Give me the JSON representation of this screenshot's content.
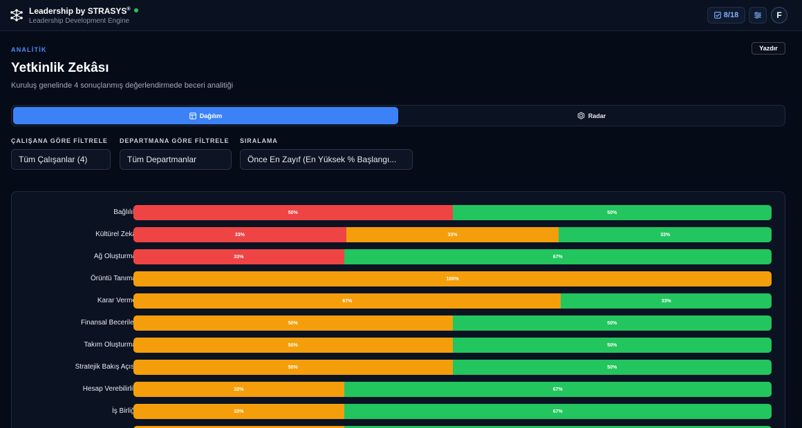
{
  "header": {
    "brand": "Leadership by STRASYS",
    "brand_mark": "®",
    "subtitle": "Leadership Development Engine",
    "progress": "8/18",
    "avatar_initial": "F"
  },
  "page": {
    "eyebrow": "ANALİTİK",
    "title": "Yetkinlik Zekâsı",
    "subtitle": "Kuruluş genelinde 4 sonuçlanmış değerlendirmede beceri analitiği",
    "print_label": "Yazdır"
  },
  "tabs": [
    {
      "label": "Dağılım",
      "active": true
    },
    {
      "label": "Radar",
      "active": false
    }
  ],
  "filters": [
    {
      "label": "ÇALIŞANA GÖRE FİLTRELE",
      "value": "Tüm Çalışanlar (4)"
    },
    {
      "label": "DEPARTMANA GÖRE FİLTRELE",
      "value": "Tüm Departmanlar"
    },
    {
      "label": "SIRALAMA",
      "value": "Önce En Zayıf (En Yüksek % Başlangı..."
    }
  ],
  "colors": {
    "red": "#ef4444",
    "orange": "#f59e0b",
    "green": "#22c55e",
    "accent": "#3b82f6"
  },
  "chart_data": {
    "type": "bar",
    "orientation": "horizontal-stacked-100",
    "series_colors": [
      "red",
      "orange",
      "green"
    ],
    "rows": [
      {
        "label": "Bağlılık",
        "segments": [
          {
            "color": "red",
            "value": 50
          },
          {
            "color": "green",
            "value": 50
          }
        ]
      },
      {
        "label": "Kültürel Zekâ",
        "segments": [
          {
            "color": "red",
            "value": 33
          },
          {
            "color": "orange",
            "value": 33
          },
          {
            "color": "green",
            "value": 33
          }
        ]
      },
      {
        "label": "Ağ Oluşturma",
        "segments": [
          {
            "color": "red",
            "value": 33
          },
          {
            "color": "green",
            "value": 67
          }
        ]
      },
      {
        "label": "Örüntü Tanıma",
        "segments": [
          {
            "color": "orange",
            "value": 100
          }
        ]
      },
      {
        "label": "Karar Verme",
        "segments": [
          {
            "color": "orange",
            "value": 67
          },
          {
            "color": "green",
            "value": 33
          }
        ]
      },
      {
        "label": "Finansal Beceriler",
        "segments": [
          {
            "color": "orange",
            "value": 50
          },
          {
            "color": "green",
            "value": 50
          }
        ]
      },
      {
        "label": "Takım Oluşturma",
        "segments": [
          {
            "color": "orange",
            "value": 50
          },
          {
            "color": "green",
            "value": 50
          }
        ]
      },
      {
        "label": "Stratejik Bakış Açısı",
        "segments": [
          {
            "color": "orange",
            "value": 50
          },
          {
            "color": "green",
            "value": 50
          }
        ]
      },
      {
        "label": "Hesap Verebilirlik",
        "segments": [
          {
            "color": "orange",
            "value": 33
          },
          {
            "color": "green",
            "value": 67
          }
        ]
      },
      {
        "label": "İş Birliği",
        "segments": [
          {
            "color": "orange",
            "value": 33
          },
          {
            "color": "green",
            "value": 67
          }
        ]
      },
      {
        "label": "",
        "segments": [
          {
            "color": "orange",
            "value": 33
          },
          {
            "color": "green",
            "value": 67
          }
        ]
      }
    ]
  }
}
